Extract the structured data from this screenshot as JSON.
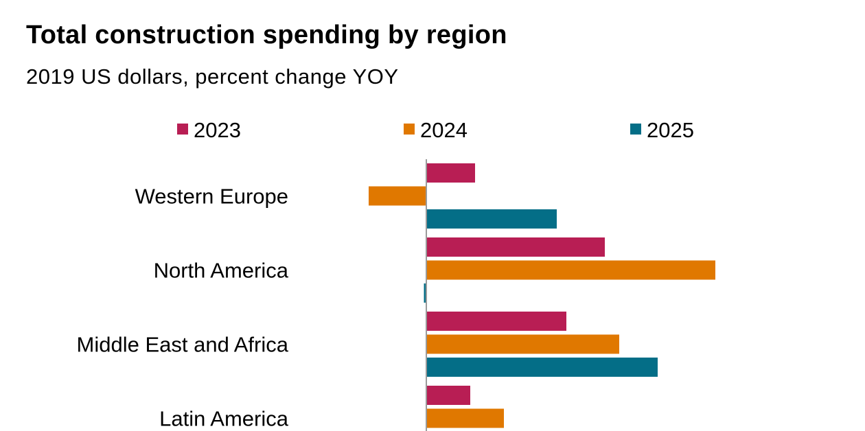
{
  "chart_data": {
    "type": "bar",
    "orientation": "horizontal",
    "title": "Total construction spending by region",
    "subtitle": "2019 US dollars, percent change YOY",
    "categories": [
      "Western Europe",
      "North America",
      "Middle East and Africa",
      "Latin America"
    ],
    "series": [
      {
        "name": "2023",
        "color": "#B81E54",
        "values": [
          1.0,
          3.7,
          2.9,
          0.9
        ]
      },
      {
        "name": "2024",
        "color": "#E07800",
        "values": [
          -1.2,
          6.0,
          4.0,
          1.6
        ]
      },
      {
        "name": "2025",
        "color": "#046E87",
        "values": [
          2.7,
          -0.05,
          4.8,
          null
        ]
      }
    ],
    "legend_position": "top",
    "grid": false,
    "value_axis_visible": false
  }
}
